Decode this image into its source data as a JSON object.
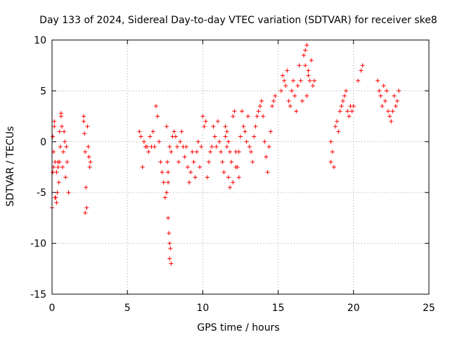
{
  "chart_data": {
    "type": "scatter",
    "title": "Day 133 of 2024, Sidereal Day-to-day VTEC variation (SDTVAR) for receiver ske8",
    "xlabel": "GPS time / hours",
    "ylabel": "SDTVAR / TECUs",
    "xlim": [
      0,
      25
    ],
    "ylim": [
      -15,
      10
    ],
    "xticks": [
      0,
      5,
      10,
      15,
      20,
      25
    ],
    "xtick_labels": [
      "0",
      "5",
      "10",
      "15",
      "20",
      "25"
    ],
    "yticks": [
      -15,
      -10,
      -5,
      0,
      5,
      10
    ],
    "ytick_labels": [
      "-15",
      "-10",
      "-5",
      "0",
      "5",
      "10"
    ],
    "grid": true,
    "marker": "+",
    "color": "#ff0000",
    "series": [
      {
        "name": "SDTVAR",
        "x": [
          0.0,
          0.05,
          0.1,
          0.15,
          0.2,
          0.25,
          0.3,
          0.35,
          0.4,
          0.45,
          0.5,
          0.55,
          0.6,
          0.65,
          0.7,
          0.75,
          0.8,
          0.85,
          0.9,
          0.95,
          1.0,
          1.1,
          0.05,
          0.1,
          0.15,
          0.2,
          0.3,
          0.4,
          0.5,
          0.6,
          2.1,
          2.15,
          2.2,
          2.25,
          2.3,
          2.1,
          2.2,
          2.35,
          2.4,
          2.45,
          2.5,
          2.55,
          5.8,
          5.9,
          6.0,
          6.1,
          6.2,
          6.3,
          6.4,
          6.5,
          6.6,
          6.7,
          6.8,
          6.9,
          7.0,
          7.1,
          7.2,
          7.3,
          7.4,
          7.5,
          7.6,
          7.7,
          7.8,
          7.9,
          8.0,
          8.1,
          8.2,
          8.3,
          8.4,
          8.5,
          8.6,
          8.7,
          8.8,
          8.9,
          9.0,
          9.1,
          9.2,
          9.3,
          9.4,
          9.5,
          9.6,
          9.7,
          9.8,
          9.9,
          7.7,
          7.75,
          7.8,
          7.8,
          7.85,
          7.9,
          7.6,
          7.65,
          7.7,
          10.0,
          10.1,
          10.2,
          10.3,
          10.4,
          10.5,
          10.6,
          10.7,
          10.8,
          10.9,
          11.0,
          11.1,
          11.2,
          11.3,
          11.4,
          11.5,
          11.6,
          11.7,
          11.8,
          11.9,
          12.0,
          12.1,
          12.2,
          12.3,
          12.4,
          12.5,
          12.6,
          12.7,
          12.8,
          12.9,
          13.0,
          13.1,
          13.2,
          13.3,
          13.4,
          13.5,
          13.6,
          13.7,
          13.8,
          13.9,
          14.0,
          14.1,
          14.2,
          14.3,
          14.4,
          14.5,
          14.6,
          14.7,
          14.8,
          11.5,
          11.6,
          11.7,
          11.8,
          12.0,
          12.2,
          12.4,
          15.2,
          15.3,
          15.4,
          15.5,
          15.6,
          15.7,
          15.8,
          15.9,
          16.0,
          16.1,
          16.2,
          16.3,
          16.4,
          16.5,
          16.6,
          16.7,
          16.8,
          16.9,
          17.0,
          17.1,
          17.2,
          17.3,
          17.4,
          16.8,
          16.9,
          17.0,
          18.5,
          18.5,
          18.6,
          18.7,
          18.8,
          18.9,
          19.0,
          19.1,
          19.2,
          19.3,
          19.4,
          19.5,
          19.6,
          19.7,
          19.8,
          19.9,
          20.0,
          20.3,
          20.5,
          20.6,
          21.6,
          21.7,
          21.8,
          21.9,
          22.0,
          22.1,
          22.2,
          22.3,
          22.4,
          22.5,
          22.6,
          22.7,
          22.8,
          22.9,
          23.0
        ],
        "y": [
          -6.5,
          -3.0,
          -1.0,
          1.5,
          -2.0,
          -5.5,
          -3.0,
          -5.0,
          -2.5,
          -4.0,
          -2.0,
          -0.5,
          2.5,
          1.5,
          -2.5,
          -1.0,
          1.0,
          0.0,
          -3.5,
          -0.5,
          -2.0,
          -5.0,
          0.5,
          -2.5,
          2.0,
          -5.5,
          -6.0,
          -2.0,
          1.0,
          2.8,
          2.5,
          0.8,
          -1.0,
          -4.5,
          -6.5,
          2.0,
          -7.0,
          1.5,
          -0.5,
          -1.5,
          -2.5,
          -2.0,
          1.0,
          0.5,
          -2.5,
          0.0,
          -0.5,
          -0.5,
          -1.0,
          0.5,
          -0.5,
          1.0,
          -0.5,
          3.5,
          2.5,
          0.0,
          -2.0,
          -3.0,
          -4.0,
          -5.5,
          1.5,
          -4.0,
          -0.5,
          -1.0,
          0.5,
          1.0,
          0.5,
          -0.5,
          -2.0,
          0.0,
          1.0,
          -0.5,
          -1.5,
          -0.5,
          -2.5,
          -4.0,
          -3.0,
          -1.0,
          -2.0,
          -3.5,
          -1.0,
          0.0,
          -2.5,
          -0.5,
          -7.5,
          -9.0,
          -10.0,
          -11.5,
          -10.5,
          -12.0,
          -5.0,
          -2.0,
          -3.0,
          2.5,
          1.5,
          2.0,
          -3.5,
          -2.0,
          -1.0,
          -0.5,
          1.5,
          0.5,
          -0.5,
          2.0,
          0.0,
          -1.0,
          -2.0,
          -3.0,
          0.5,
          -0.5,
          -3.5,
          -4.5,
          -2.0,
          2.5,
          3.0,
          -1.0,
          -2.5,
          -1.0,
          0.5,
          3.0,
          1.5,
          1.0,
          0.0,
          2.5,
          -0.5,
          -1.0,
          -2.0,
          0.5,
          1.5,
          2.5,
          3.0,
          3.5,
          4.0,
          2.5,
          0.0,
          -1.5,
          -3.0,
          -0.5,
          1.0,
          3.5,
          4.0,
          4.5,
          1.5,
          1.0,
          0.0,
          -1.0,
          -4.0,
          -2.5,
          -3.5,
          5.0,
          6.5,
          6.0,
          5.5,
          7.0,
          4.0,
          3.5,
          5.0,
          6.0,
          4.5,
          3.0,
          5.5,
          7.5,
          6.0,
          4.0,
          8.5,
          9.0,
          9.5,
          7.0,
          6.0,
          8.0,
          5.5,
          6.0,
          7.5,
          4.5,
          6.5,
          0.0,
          -2.0,
          -1.0,
          -2.5,
          1.5,
          2.0,
          1.0,
          3.0,
          3.5,
          4.0,
          4.5,
          5.0,
          3.0,
          2.5,
          3.5,
          3.0,
          3.5,
          6.0,
          7.0,
          7.5,
          6.0,
          5.0,
          4.5,
          3.5,
          5.5,
          4.0,
          5.0,
          3.0,
          2.5,
          2.0,
          3.0,
          4.5,
          3.5,
          4.0,
          5.0
        ]
      }
    ]
  }
}
